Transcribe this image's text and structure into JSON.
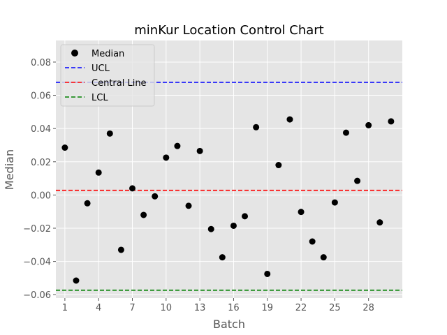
{
  "chart_data": {
    "type": "scatter",
    "title": "minKur Location Control Chart",
    "xlabel": "Batch",
    "ylabel": "Median",
    "xlim": [
      0.2,
      31.0
    ],
    "ylim": [
      -0.062,
      0.093
    ],
    "x_ticks": [
      1,
      4,
      7,
      10,
      13,
      16,
      19,
      22,
      25,
      28
    ],
    "x_tick_labels": [
      "1",
      "4",
      "7",
      "10",
      "13",
      "16",
      "19",
      "22",
      "25",
      "28"
    ],
    "y_ticks": [
      -0.06,
      -0.04,
      -0.02,
      0.0,
      0.02,
      0.04,
      0.06,
      0.08
    ],
    "y_tick_labels": [
      "−0.06",
      "−0.04",
      "−0.02",
      "0.00",
      "0.02",
      "0.04",
      "0.06",
      "0.08"
    ],
    "grid": true,
    "legend_position": "top-left",
    "series": [
      {
        "name": "Median",
        "color": "#000000",
        "x": [
          1,
          2,
          3,
          4,
          5,
          6,
          7,
          8,
          9,
          10,
          11,
          12,
          13,
          14,
          15,
          16,
          17,
          18,
          19,
          20,
          21,
          22,
          23,
          24,
          25,
          26,
          27,
          28,
          29,
          30
        ],
        "y": [
          0.0285,
          -0.0515,
          -0.005,
          0.0135,
          0.037,
          -0.033,
          0.004,
          -0.012,
          -0.0008,
          0.0225,
          0.0295,
          -0.0065,
          0.0265,
          -0.0205,
          -0.0375,
          -0.0185,
          -0.0128,
          0.0408,
          -0.0475,
          0.018,
          0.0455,
          -0.0102,
          -0.028,
          -0.0375,
          -0.0045,
          0.0375,
          0.0085,
          0.042,
          -0.0165,
          0.0443
        ]
      }
    ],
    "reference_lines": [
      {
        "name": "UCL",
        "y": 0.0678,
        "color": "#0000ff",
        "style": "dashed"
      },
      {
        "name": "Central Line",
        "y": 0.0028,
        "color": "#ff0000",
        "style": "dashed"
      },
      {
        "name": "LCL",
        "y": -0.0573,
        "color": "#008000",
        "style": "dashed"
      }
    ]
  },
  "colors": {
    "plot_background": "#e5e5e5",
    "grid": "#ffffff"
  }
}
